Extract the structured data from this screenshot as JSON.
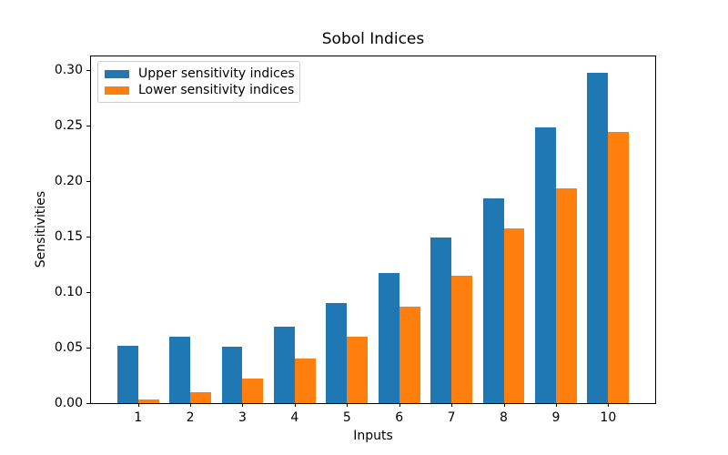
{
  "chart_data": {
    "type": "bar",
    "title": "Sobol Indices",
    "xlabel": "Inputs",
    "ylabel": "Sensitivities",
    "categories": [
      1,
      2,
      3,
      4,
      5,
      6,
      7,
      8,
      9,
      10
    ],
    "series": [
      {
        "name": "Upper sensitivity indices",
        "color": "#1f77b4",
        "values": [
          0.052,
          0.06,
          0.051,
          0.069,
          0.09,
          0.117,
          0.149,
          0.184,
          0.248,
          0.297
        ]
      },
      {
        "name": "Lower sensitivity indices",
        "color": "#ff7f0e",
        "values": [
          0.003,
          0.01,
          0.022,
          0.04,
          0.06,
          0.087,
          0.115,
          0.157,
          0.193,
          0.244
        ]
      }
    ],
    "yticks": [
      0.0,
      0.05,
      0.1,
      0.15,
      0.2,
      0.25,
      0.3
    ],
    "ytick_labels": [
      "0.00",
      "0.05",
      "0.10",
      "0.15",
      "0.20",
      "0.25",
      "0.30"
    ],
    "ylim": [
      0,
      0.312
    ],
    "xlim": [
      0.1,
      10.9
    ],
    "bar_width": 0.4,
    "grid": false,
    "legend_position": "upper left",
    "background_color": "#ffffff",
    "spine_color": "#000000"
  }
}
